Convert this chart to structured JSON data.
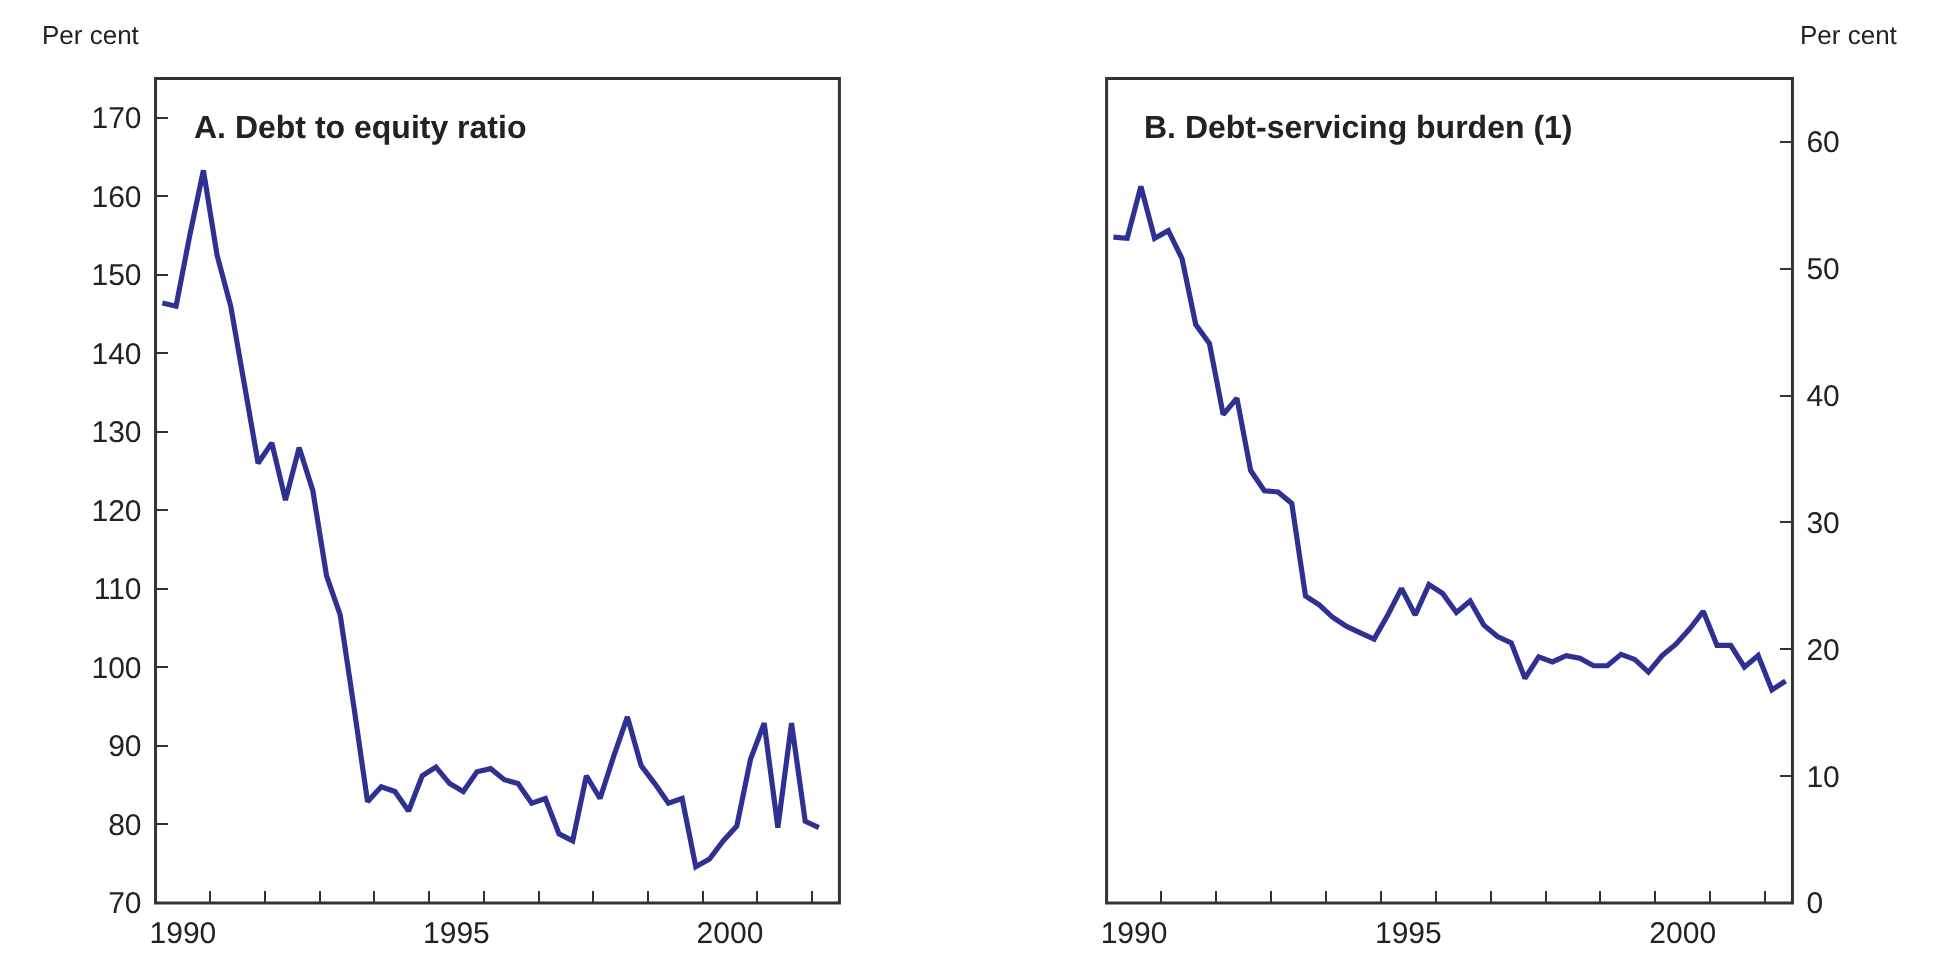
{
  "chart_data": [
    {
      "type": "line",
      "title": "A. Debt to equity ratio",
      "ylabel": "Per cent",
      "marker": "none",
      "line_style": "solid",
      "x": [
        1990.125,
        1990.375,
        1990.625,
        1990.875,
        1991.125,
        1991.375,
        1991.625,
        1991.875,
        1992.125,
        1992.375,
        1992.625,
        1992.875,
        1993.125,
        1993.375,
        1993.625,
        1993.875,
        1994.125,
        1994.375,
        1994.625,
        1994.875,
        1995.125,
        1995.375,
        1995.625,
        1995.875,
        1996.125,
        1996.375,
        1996.625,
        1996.875,
        1997.125,
        1997.375,
        1997.625,
        1997.875,
        1998.125,
        1998.375,
        1998.625,
        1998.875,
        1999.125,
        1999.375,
        1999.625,
        1999.875,
        2000.125,
        2000.375,
        2000.625,
        2000.875,
        2001.125,
        2001.375,
        2001.625,
        2001.875,
        2002.125
      ],
      "series": [
        {
          "color": "#2e3192",
          "values": [
            146.4,
            146,
            155,
            163.3,
            152.5,
            146,
            136,
            126,
            128.6,
            121.3,
            128,
            122.5,
            111.7,
            106.7,
            95,
            82.9,
            84.8,
            84.2,
            81.7,
            86.2,
            87.3,
            85.2,
            84.2,
            86.7,
            87.1,
            85.7,
            85.2,
            82.7,
            83.3,
            78.8,
            77.9,
            86.2,
            83.3,
            88.7,
            93.7,
            87.5,
            85.2,
            82.7,
            83.3,
            74.6,
            75.6,
            77.9,
            79.8,
            88.3,
            92.9,
            79.6,
            92.9,
            80.4,
            79.6
          ]
        }
      ],
      "xlim": [
        1990,
        2002.5
      ],
      "xticks": [
        {
          "value": 1990,
          "label": null
        },
        {
          "value": 1991,
          "label": null
        },
        {
          "value": 1992,
          "label": null
        },
        {
          "value": 1993,
          "label": null
        },
        {
          "value": 1994,
          "label": null
        },
        {
          "value": 1995,
          "label": null
        },
        {
          "value": 1996,
          "label": null
        },
        {
          "value": 1997,
          "label": null
        },
        {
          "value": 1998,
          "label": null
        },
        {
          "value": 1999,
          "label": null
        },
        {
          "value": 2000,
          "label": null
        },
        {
          "value": 2001,
          "label": null
        },
        {
          "value": 2002,
          "label": null
        },
        {
          "value": 1990.5,
          "label": "1990"
        },
        {
          "value": 1995.5,
          "label": "1995"
        },
        {
          "value": 2000.5,
          "label": "2000"
        }
      ],
      "ylim": [
        70,
        175
      ],
      "yticks": [
        70,
        80,
        90,
        100,
        110,
        120,
        130,
        140,
        150,
        160,
        170
      ]
    },
    {
      "type": "line",
      "title": "B. Debt-servicing burden (1)",
      "y2label": "Per cent",
      "marker": "none",
      "line_style": "solid",
      "x": [
        1990.125,
        1990.375,
        1990.625,
        1990.875,
        1991.125,
        1991.375,
        1991.625,
        1991.875,
        1992.125,
        1992.375,
        1992.625,
        1992.875,
        1993.125,
        1993.375,
        1993.625,
        1993.875,
        1994.125,
        1994.375,
        1994.625,
        1994.875,
        1995.125,
        1995.375,
        1995.625,
        1995.875,
        1996.125,
        1996.375,
        1996.625,
        1996.875,
        1997.125,
        1997.375,
        1997.625,
        1997.875,
        1998.125,
        1998.375,
        1998.625,
        1998.875,
        1999.125,
        1999.375,
        1999.625,
        1999.875,
        2000.125,
        2000.375,
        2000.625,
        2000.875,
        2001.125,
        2001.375,
        2001.625,
        2001.875,
        2002.125,
        2002.375
      ],
      "series": [
        {
          "color": "#2e3192",
          "axis": "y2",
          "values": [
            52.5,
            52.4,
            56.5,
            52.4,
            53.0,
            50.8,
            45.6,
            44.1,
            38.5,
            39.8,
            34.1,
            32.5,
            32.4,
            31.5,
            24.2,
            23.5,
            22.5,
            21.8,
            21.3,
            20.8,
            22.7,
            24.8,
            22.7,
            25.1,
            24.4,
            22.9,
            23.8,
            21.9,
            21.0,
            20.5,
            17.7,
            19.4,
            19.0,
            19.5,
            19.3,
            18.7,
            18.7,
            19.6,
            19.2,
            18.2,
            19.5,
            20.4,
            21.6,
            23.0,
            20.3,
            20.3,
            18.6,
            19.5,
            16.8,
            17.5
          ]
        }
      ],
      "xlim": [
        1990,
        2002.5
      ],
      "xticks": [
        {
          "value": 1990,
          "label": null
        },
        {
          "value": 1991,
          "label": null
        },
        {
          "value": 1992,
          "label": null
        },
        {
          "value": 1993,
          "label": null
        },
        {
          "value": 1994,
          "label": null
        },
        {
          "value": 1995,
          "label": null
        },
        {
          "value": 1996,
          "label": null
        },
        {
          "value": 1997,
          "label": null
        },
        {
          "value": 1998,
          "label": null
        },
        {
          "value": 1999,
          "label": null
        },
        {
          "value": 2000,
          "label": null
        },
        {
          "value": 2001,
          "label": null
        },
        {
          "value": 2002,
          "label": null
        },
        {
          "value": 1990.5,
          "label": "1990"
        },
        {
          "value": 1995.5,
          "label": "1995"
        },
        {
          "value": 2000.5,
          "label": "2000"
        }
      ],
      "y2lim": [
        0,
        65
      ],
      "y2ticks": [
        0,
        10,
        20,
        30,
        40,
        50,
        60
      ]
    }
  ]
}
